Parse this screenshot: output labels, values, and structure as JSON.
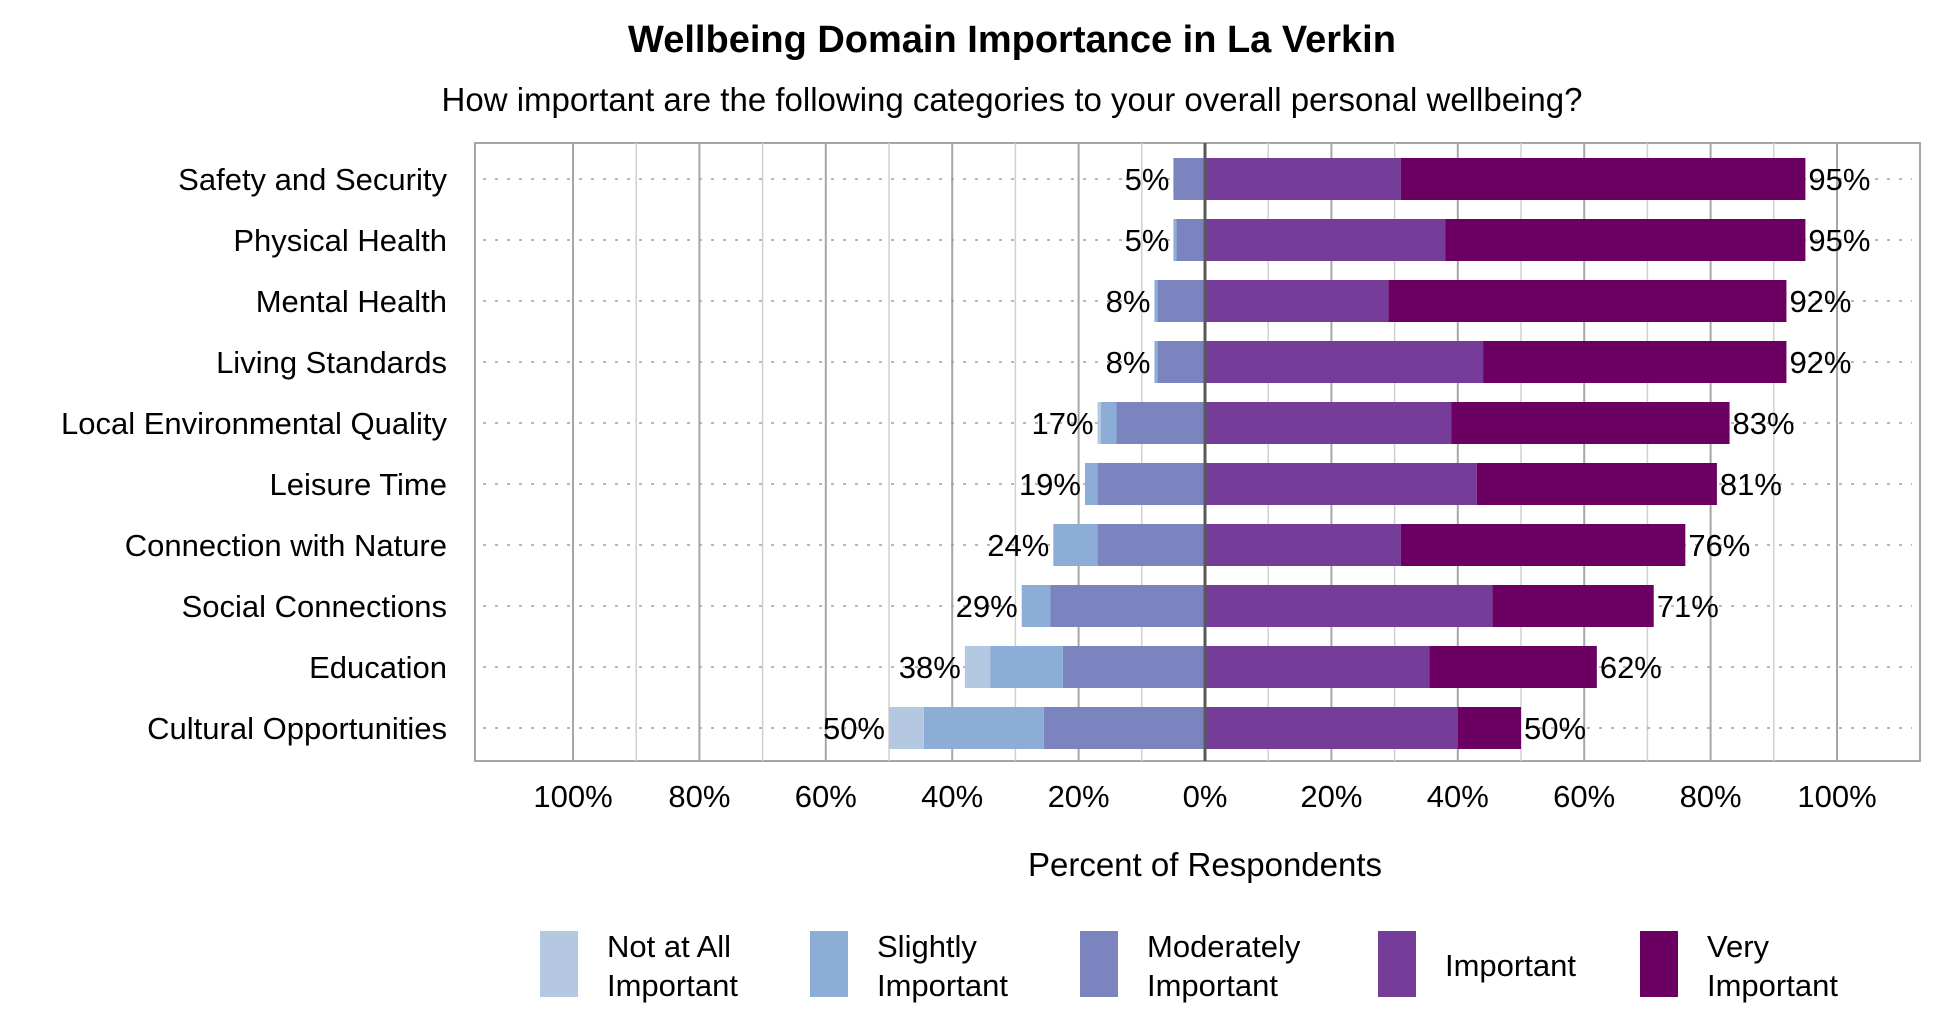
{
  "chart_data": {
    "type": "bar",
    "orientation": "horizontal",
    "stacked": "diverging",
    "title": "Wellbeing Domain Importance in La Verkin",
    "subtitle": "How important are the following categories to your overall personal wellbeing?",
    "xlabel": "Percent of Respondents",
    "xlim": [
      -100,
      100
    ],
    "x_ticks": [
      -100,
      -80,
      -60,
      -40,
      -20,
      0,
      20,
      40,
      60,
      80,
      100
    ],
    "x_tick_labels": [
      "100%",
      "80%",
      "60%",
      "40%",
      "20%",
      "0%",
      "20%",
      "40%",
      "60%",
      "80%",
      "100%"
    ],
    "grid": true,
    "legend_position": "bottom",
    "categories": [
      "Safety and Security",
      "Physical Health",
      "Mental Health",
      "Living Standards",
      "Local Environmental Quality",
      "Leisure Time",
      "Connection with Nature",
      "Social Connections",
      "Education",
      "Cultural Opportunities"
    ],
    "series": [
      {
        "name": "Not at All Important",
        "side": "negative",
        "color": "#b4c8e1",
        "values": [
          0,
          0,
          0,
          0,
          0.5,
          0,
          0,
          0,
          4,
          5.5
        ]
      },
      {
        "name": "Slightly Important",
        "side": "negative",
        "color": "#8cadd6",
        "values": [
          0,
          0.5,
          0.5,
          0.5,
          2.5,
          2,
          7,
          4.5,
          11.5,
          19
        ]
      },
      {
        "name": "Moderately Important",
        "side": "negative",
        "color": "#7b84bf",
        "values": [
          5,
          4.5,
          7.5,
          7.5,
          14,
          17,
          17,
          24.5,
          22.5,
          25.5
        ]
      },
      {
        "name": "Important",
        "side": "positive",
        "color": "#763c99",
        "values": [
          31,
          38,
          29,
          44,
          39,
          43,
          31,
          45.5,
          35.5,
          40
        ]
      },
      {
        "name": "Very Important",
        "side": "positive",
        "color": "#6b0062",
        "values": [
          64,
          57,
          63,
          48,
          44,
          38,
          45,
          25.5,
          26.5,
          10
        ]
      }
    ],
    "negative_totals": [
      "5%",
      "5%",
      "8%",
      "8%",
      "17%",
      "19%",
      "24%",
      "29%",
      "38%",
      "50%"
    ],
    "positive_totals": [
      "95%",
      "95%",
      "92%",
      "92%",
      "83%",
      "81%",
      "76%",
      "71%",
      "62%",
      "50%"
    ],
    "legend": [
      {
        "lines": [
          "Not at All",
          "Important"
        ],
        "color": "#b4c8e1"
      },
      {
        "lines": [
          "Slightly",
          "Important"
        ],
        "color": "#8cadd6"
      },
      {
        "lines": [
          "Moderately",
          "Important"
        ],
        "color": "#7b84bf"
      },
      {
        "lines": [
          "Important"
        ],
        "color": "#763c99"
      },
      {
        "lines": [
          "Very",
          "Important"
        ],
        "color": "#6b0062"
      }
    ]
  }
}
